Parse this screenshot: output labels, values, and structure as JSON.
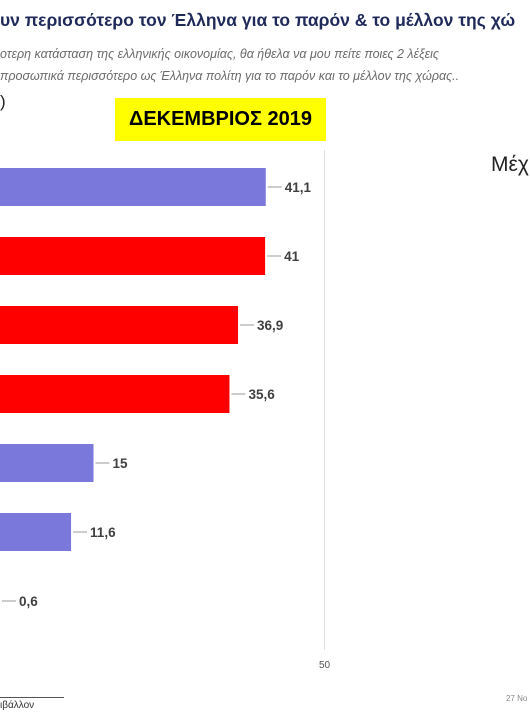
{
  "header": {
    "title": "υν περισσότερο τον Έλληνα για το παρόν & το μέλλον της χώ",
    "subtitle_line1": "οτερη κατάσταση της ελληνικής οικονομίας, θα ήθελα να μου πείτε ποιες 2  λέξεις",
    "subtitle_line2": "προσωπικά περισσότερο ως Έλληνα πολίτη για το παρόν και το μέλλον της χώρας..",
    "paren": ")"
  },
  "badge": {
    "text": "ΔΕΚΕΜΒΡΙΟΣ 2019",
    "color": "#ffff00"
  },
  "side_label": "Μέχ",
  "footer": {
    "left": "ιβάλλον",
    "right": "27 Νο"
  },
  "chart_data": {
    "type": "bar",
    "orientation": "horizontal",
    "values": [
      41.1,
      41,
      36.9,
      35.6,
      15,
      11.6,
      0.6
    ],
    "value_labels": [
      "41,1",
      "41",
      "36,9",
      "35,6",
      "15",
      "11,6",
      "0,6"
    ],
    "colors": [
      "#7b78dc",
      "#ff0000",
      "#ff0000",
      "#ff0000",
      "#7b78dc",
      "#7b78dc",
      "#7b78dc"
    ],
    "x_ticks": [
      50
    ],
    "x_tick_labels": [
      "50"
    ],
    "gridlines": true
  }
}
